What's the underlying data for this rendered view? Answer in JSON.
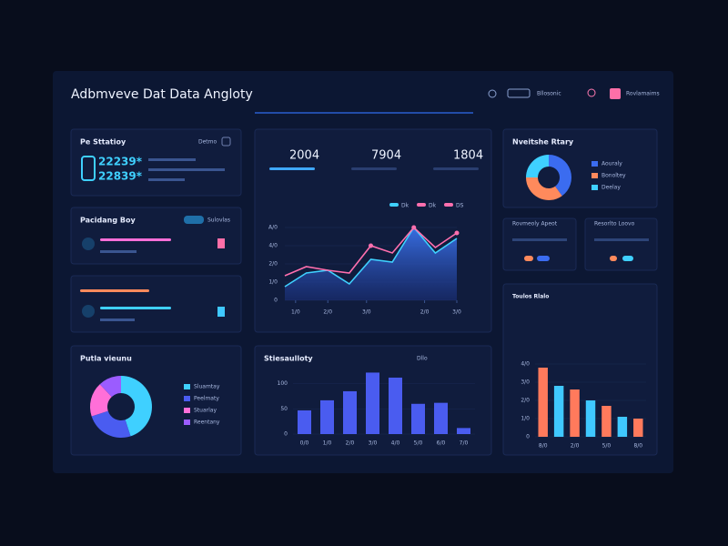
{
  "header": {
    "title": "Adbmveve Dat Data Angloty",
    "menu": [
      "Bllosonic",
      "Rovlamaims"
    ]
  },
  "stats": {
    "title": "Pe Sttatioy",
    "tag": "Detmo",
    "figures": [
      "22239*",
      "22839*"
    ]
  },
  "progress": {
    "title": "Pacidang Boy",
    "tag": "Sulovlas"
  },
  "line_chart": {
    "type": "line",
    "kpis": [
      "2004",
      "7904",
      "1804"
    ],
    "legend": [
      "Dk",
      "Dk",
      "DS"
    ],
    "x": [
      0,
      1,
      2,
      3,
      4,
      5,
      6,
      7,
      8
    ],
    "xlim": [
      0,
      8
    ],
    "xticks": [
      {
        "value": 0.5,
        "label": "1/0"
      },
      {
        "value": 2,
        "label": "2/0"
      },
      {
        "value": 3.8,
        "label": "3/0"
      },
      {
        "value": 6.5,
        "label": "2/0"
      },
      {
        "value": 8,
        "label": "3/0"
      }
    ],
    "ylim": [
      0,
      450
    ],
    "yticks": [
      0,
      {
        "value": 100,
        "label": "1/0"
      },
      {
        "value": 200,
        "label": "2/0"
      },
      {
        "value": 300,
        "label": "4/0"
      },
      {
        "value": 400,
        "label": "A/0"
      }
    ],
    "series": [
      {
        "name": "Dk",
        "color": "#3fd0ff",
        "values": [
          75,
          150,
          165,
          90,
          225,
          210,
          400,
          260,
          340
        ]
      },
      {
        "name": "DS",
        "color": "#ff6fae",
        "values": [
          135,
          185,
          165,
          150,
          300,
          260,
          400,
          290,
          370
        ]
      }
    ]
  },
  "bar_chart": {
    "type": "bar",
    "title": "Stiesaulloty",
    "tag": "Dllo",
    "categories": [
      "0/0",
      "1/0",
      "2/0",
      "3/0",
      "4/0",
      "5/0",
      "6/0",
      "7/0"
    ],
    "values": [
      47,
      67,
      85,
      122,
      112,
      60,
      62,
      12
    ],
    "color": "#4a5cf0",
    "ylim": [
      0,
      130
    ],
    "yticks": [
      0,
      50,
      100
    ]
  },
  "donut_left": {
    "type": "pie",
    "title": "Putla vieunu",
    "categories": [
      "Sluamtay",
      "Peelmaty",
      "Stuarlay",
      "Reentany"
    ],
    "values": [
      45,
      25,
      18,
      12
    ],
    "colors": [
      "#3fd0ff",
      "#4a5cf0",
      "#ff6fd8",
      "#9b5cff"
    ]
  },
  "donut_right": {
    "type": "pie",
    "title": "Nveitshe Rtary",
    "categories": [
      "Aouraly",
      "Bonoltey",
      "Deelay"
    ],
    "values": [
      40,
      35,
      25
    ],
    "colors": [
      "#3b6cf0",
      "#ff8a5c",
      "#3fd0ff"
    ]
  },
  "mini": [
    {
      "title": "Rovmeoly Apeot"
    },
    {
      "title": "Resorlto Loovo"
    }
  ],
  "bar_right": {
    "type": "bar",
    "title": "Toulos Rlalo",
    "categories": [
      "8/0",
      "",
      "2/0",
      "",
      "5/0",
      "",
      "8/0"
    ],
    "values": [
      38,
      28,
      26,
      20,
      17,
      11,
      10
    ],
    "colors": [
      "#ff7a5c",
      "#3fc8ff",
      "#ff7a5c",
      "#3fc8ff",
      "#ff7a5c",
      "#3fc8ff",
      "#ff7a5c"
    ],
    "ylim": [
      0,
      44
    ],
    "yticks": [
      0,
      {
        "value": 10,
        "label": "1/0"
      },
      {
        "value": 20,
        "label": "2/0"
      },
      {
        "value": 30,
        "label": "3/0"
      },
      {
        "value": 40,
        "label": "4/0"
      }
    ]
  }
}
